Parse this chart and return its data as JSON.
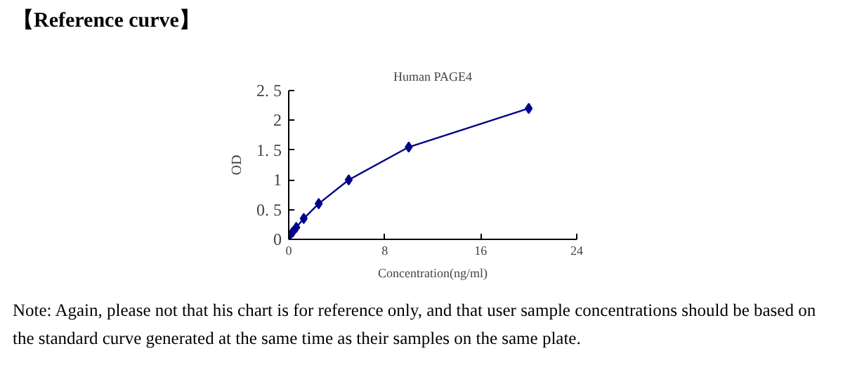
{
  "chart_data": {
    "type": "line",
    "title": "Human PAGE4",
    "xlabel": "Concentration(ng/ml)",
    "ylabel": "OD",
    "x": [
      0,
      0.31,
      0.63,
      1.25,
      2.5,
      5,
      10,
      20
    ],
    "series": [
      {
        "color": "#00008b",
        "values": [
          0.05,
          0.12,
          0.2,
          0.35,
          0.6,
          1.0,
          1.55,
          2.2
        ]
      }
    ],
    "marker": "diamond",
    "line_style": "solid",
    "grid": false,
    "xlim": [
      0,
      24
    ],
    "xticks": [
      0,
      8,
      16,
      24
    ],
    "ylim": [
      0,
      2.5
    ],
    "yticks": [
      0,
      {
        "value": 0.5,
        "label": "0. 5"
      },
      1,
      {
        "value": 1.5,
        "label": "1. 5"
      },
      2,
      {
        "value": 2.5,
        "label": "2. 5"
      }
    ],
    "annotations": [
      "【Reference curve】",
      "Note: Again, please not that his chart is for reference only, and that user sample concentrations should be based on the standard curve generated at the same time as their samples on the same plate."
    ]
  }
}
